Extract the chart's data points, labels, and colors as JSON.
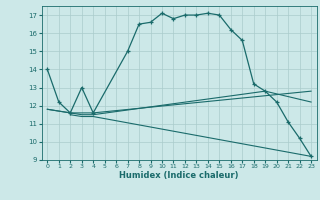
{
  "xlabel": "Humidex (Indice chaleur)",
  "xlim": [
    -0.5,
    23.5
  ],
  "ylim": [
    9,
    17.5
  ],
  "yticks": [
    9,
    10,
    11,
    12,
    13,
    14,
    15,
    16,
    17
  ],
  "xticks": [
    0,
    1,
    2,
    3,
    4,
    5,
    6,
    7,
    8,
    9,
    10,
    11,
    12,
    13,
    14,
    15,
    16,
    17,
    18,
    19,
    20,
    21,
    22,
    23
  ],
  "background_color": "#cce8e8",
  "grid_color": "#aacccc",
  "line_color": "#1a6b6b",
  "line1_x": [
    0,
    1,
    2,
    3,
    4,
    7,
    8,
    9,
    10,
    11,
    12,
    13,
    14,
    15,
    16,
    17,
    18,
    19,
    20,
    21,
    22,
    23
  ],
  "line1_y": [
    14.0,
    12.2,
    11.6,
    13.0,
    11.6,
    15.0,
    16.5,
    16.6,
    17.1,
    16.8,
    17.0,
    17.0,
    17.1,
    17.0,
    16.2,
    15.6,
    13.2,
    12.8,
    12.2,
    11.1,
    10.2,
    9.2
  ],
  "line2_x": [
    0,
    2,
    3,
    4,
    23
  ],
  "line2_y": [
    11.8,
    11.6,
    11.6,
    11.6,
    12.8
  ],
  "line3_x": [
    0,
    2,
    3,
    4,
    19,
    23
  ],
  "line3_y": [
    11.8,
    11.6,
    11.5,
    11.5,
    12.8,
    12.2
  ],
  "line4_x": [
    2,
    3,
    4,
    23
  ],
  "line4_y": [
    11.5,
    11.4,
    11.4,
    9.2
  ]
}
